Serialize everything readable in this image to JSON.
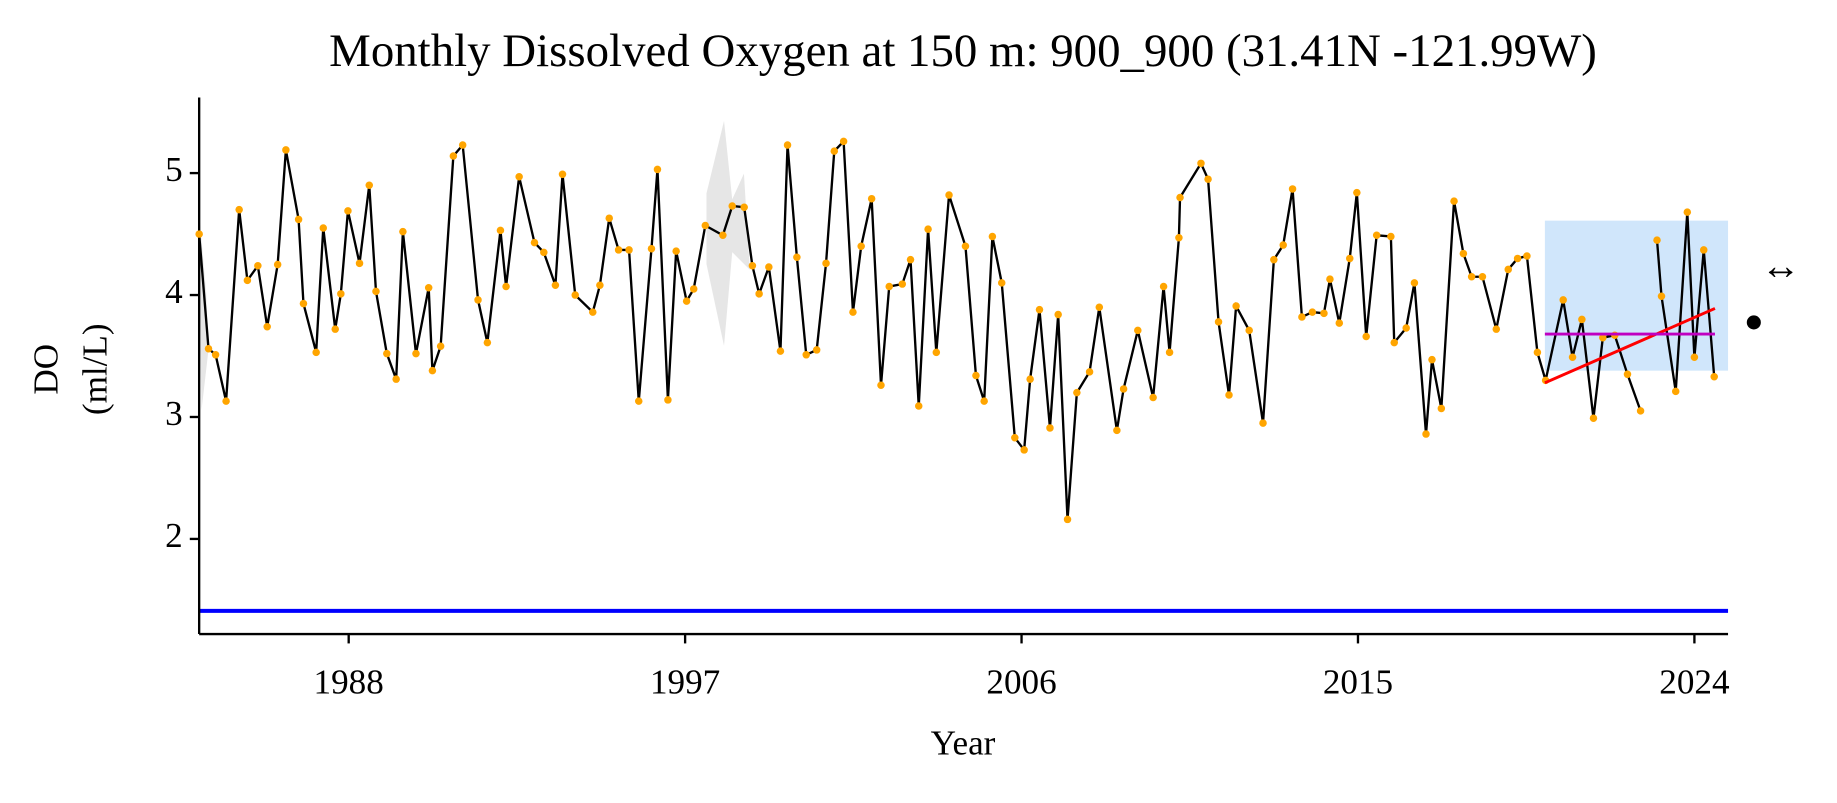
{
  "chart_data": {
    "type": "line",
    "title": "Monthly Dissolved Oxygen at 150 m: 900_900 (31.41N -121.99W)",
    "xlabel": "Year",
    "ylabel": [
      "DO",
      "(ml/L)"
    ],
    "annotations": [
      "↔"
    ],
    "xlim": [
      1984.0,
      2024.9
    ],
    "ylim": [
      1.22,
      5.62
    ],
    "xticks": [
      1988,
      1997,
      2006,
      2015,
      2024
    ],
    "yticks": [
      2,
      3,
      4,
      5
    ],
    "series": [
      {
        "color": "#000000",
        "marker_color": "#ffa500",
        "x": [
          1984.0,
          1984.25,
          1984.44,
          1984.72,
          1985.07,
          1985.29,
          1985.57,
          1985.82,
          1986.1,
          1986.32,
          1986.66,
          1986.79,
          1987.13,
          1987.32,
          1987.64,
          1987.79,
          1987.98,
          1988.29,
          1988.55,
          1988.73,
          1989.02,
          1989.27,
          1989.45,
          1989.8,
          1990.14,
          1990.24,
          1990.46,
          1990.8,
          1991.05,
          1991.46,
          1991.71,
          1992.06,
          1992.21,
          1992.56,
          1992.97,
          1993.22,
          1993.53,
          1993.72,
          1994.06,
          1994.53,
          1994.72,
          1994.97,
          1995.22,
          1995.5,
          1995.76,
          1996.1,
          1996.26,
          1996.54,
          1996.76,
          1997.04,
          1997.23,
          1997.54,
          1998.01,
          1998.26,
          1998.58,
          1998.8,
          1998.98,
          1999.24,
          1999.55,
          1999.74,
          1999.99,
          2000.24,
          2000.52,
          2000.77,
          2000.99,
          2001.24,
          2001.49,
          2001.71,
          2001.99,
          2002.24,
          2002.46,
          2002.81,
          2003.03,
          2003.25,
          2003.5,
          2003.72,
          2004.06,
          2004.5,
          2004.78,
          2005.0,
          2005.22,
          2005.47,
          2005.82,
          2006.07,
          2006.23,
          2006.48,
          2006.76,
          2006.98,
          2007.23,
          2007.48,
          2007.82,
          2008.08,
          2008.55,
          2008.73,
          2009.11,
          2009.52,
          2009.8,
          2009.96,
          2010.21,
          2010.24,
          2010.8,
          2010.99,
          2011.27,
          2011.55,
          2011.74,
          2012.09,
          2012.46,
          2012.75,
          2013.0,
          2013.25,
          2013.5,
          2013.78,
          2014.09,
          2014.25,
          2014.5,
          2014.78,
          2014.97,
          2015.22,
          2015.5,
          2015.88,
          2015.97,
          2016.29,
          2016.51,
          2016.82,
          2016.98,
          2017.23,
          2017.57,
          2017.82,
          2018.04,
          2018.33,
          2018.7,
          2019.02,
          2019.27,
          2019.52,
          2019.8,
          2020.02,
          2020.49,
          2020.74,
          2020.99,
          2021.3,
          2021.55,
          2021.87,
          2022.21,
          2022.56,
          2022.78,
          2023.0,
          2023.12,
          2023.5,
          2023.81,
          2024.0,
          2024.25,
          2024.53
        ],
        "values": [
          4.5,
          3.56,
          3.51,
          3.13,
          4.7,
          4.12,
          4.24,
          3.74,
          4.25,
          5.19,
          4.62,
          3.93,
          3.53,
          4.55,
          3.72,
          4.01,
          4.69,
          4.26,
          4.9,
          4.03,
          3.52,
          3.31,
          4.52,
          3.52,
          4.06,
          3.38,
          3.58,
          5.14,
          5.23,
          3.96,
          3.61,
          4.53,
          4.07,
          4.97,
          4.43,
          4.35,
          4.08,
          4.99,
          4.0,
          3.86,
          4.08,
          4.63,
          4.37,
          4.37,
          3.13,
          4.38,
          5.03,
          3.14,
          4.36,
          3.95,
          4.05,
          4.57,
          4.49,
          4.73,
          4.72,
          4.24,
          4.01,
          4.23,
          3.54,
          5.23,
          4.31,
          3.51,
          3.55,
          4.26,
          5.18,
          5.26,
          3.86,
          4.4,
          4.79,
          3.26,
          4.07,
          4.09,
          4.29,
          3.09,
          4.54,
          3.53,
          4.82,
          4.4,
          3.34,
          3.13,
          4.48,
          4.1,
          2.83,
          2.73,
          3.31,
          3.88,
          2.91,
          3.84,
          2.16,
          3.2,
          3.37,
          3.9,
          2.89,
          3.23,
          3.71,
          3.16,
          4.07,
          3.53,
          4.47,
          4.8,
          5.08,
          4.95,
          3.78,
          3.18,
          3.91,
          3.71,
          2.95,
          4.29,
          4.41,
          4.87,
          3.82,
          3.86,
          3.85,
          4.13,
          3.77,
          4.3,
          4.84,
          3.66,
          4.49,
          4.48,
          3.61,
          3.73,
          4.1,
          2.86,
          3.47,
          3.07,
          4.77,
          4.34,
          4.15,
          4.15,
          3.72,
          4.21,
          4.3,
          4.32,
          3.53,
          3.3,
          3.96,
          3.49,
          3.8,
          2.99,
          3.65,
          3.67,
          3.35,
          3.05,
          null,
          4.45,
          3.99,
          3.21,
          4.68,
          3.49,
          4.37,
          3.33
        ]
      }
    ],
    "reference_line": {
      "value": 1.41,
      "color": "#0000ff"
    },
    "highlight_box": {
      "x": [
        2020.0,
        2024.9
      ],
      "y": [
        3.38,
        4.61
      ],
      "color": "#d0e6fb"
    },
    "trend_line": {
      "x": [
        2020.0,
        2024.55
      ],
      "y": [
        3.28,
        3.89
      ],
      "color": "#ff0000"
    },
    "mean_line": {
      "x": [
        2020.0,
        2024.55
      ],
      "y": 3.68,
      "color": "#c000c0"
    }
  }
}
